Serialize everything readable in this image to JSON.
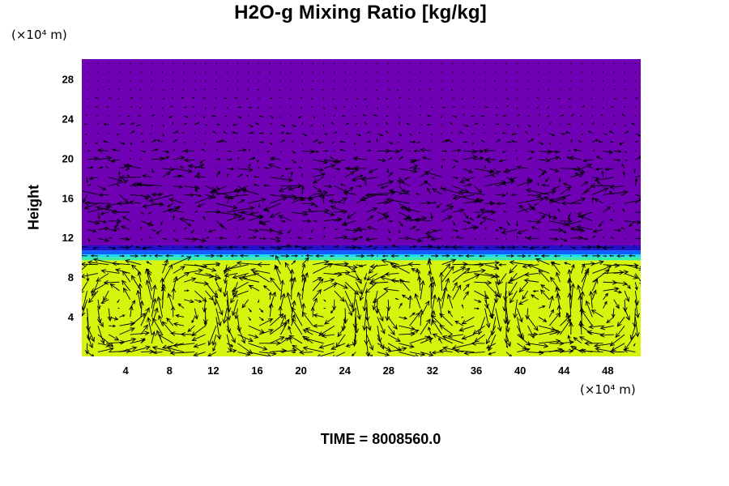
{
  "chart_data": {
    "type": "heatmap",
    "title": "H2O-g Mixing Ratio [kg/kg]",
    "ylabel": "Height",
    "xunit": "(×10⁴ m)",
    "yunit": "(×10⁴ m)",
    "xlim": [
      0,
      51
    ],
    "ylim": [
      0,
      30
    ],
    "xticks": [
      4,
      8,
      12,
      16,
      20,
      24,
      28,
      32,
      36,
      40,
      44,
      48
    ],
    "yticks": [
      4,
      8,
      12,
      16,
      20,
      24,
      28
    ],
    "layers": [
      {
        "from": 0,
        "to": 9.7,
        "color": "#d6f50e"
      },
      {
        "from": 9.7,
        "to": 10.0,
        "color": "#3af0a0"
      },
      {
        "from": 10.0,
        "to": 10.3,
        "color": "#22d8f0"
      },
      {
        "from": 10.3,
        "to": 10.7,
        "color": "#1060ff"
      },
      {
        "from": 10.7,
        "to": 11.2,
        "color": "#2212c8"
      },
      {
        "from": 11.2,
        "to": 30,
        "color": "#7000b4"
      }
    ],
    "vectors": "wind-field"
  },
  "time_label": "TIME = 8008560.0"
}
